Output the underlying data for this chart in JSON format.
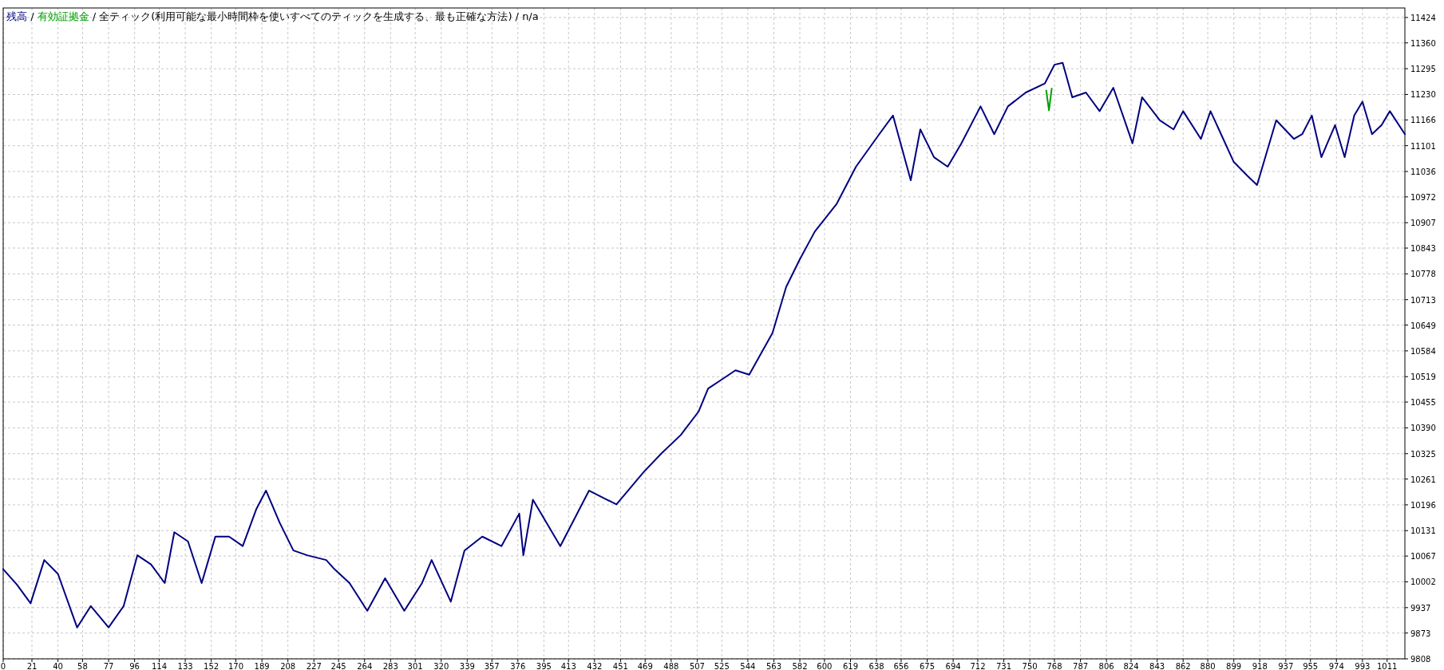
{
  "chart_data": {
    "type": "line",
    "title": "全ティック(利用可能な最小時間枠を使いすべてのティックを生成する、最も正確な方法)",
    "subtitle": "n/a",
    "annotations": [
      "/",
      "/",
      "/"
    ],
    "legend": "top left",
    "grid": true,
    "marker": "none",
    "line_style": "solid",
    "xlim": [
      0,
      1024
    ],
    "ylim": [
      9808,
      11448
    ],
    "xticks": [
      0,
      21,
      40,
      58,
      77,
      96,
      114,
      133,
      152,
      170,
      189,
      208,
      227,
      245,
      264,
      283,
      301,
      320,
      339,
      357,
      376,
      395,
      413,
      432,
      451,
      469,
      488,
      507,
      525,
      544,
      563,
      582,
      600,
      619,
      638,
      656,
      675,
      694,
      712,
      731,
      750,
      768,
      787,
      806,
      824,
      843,
      862,
      880,
      899,
      918,
      937,
      955,
      974,
      993,
      1011
    ],
    "yticks": [
      9808,
      9873,
      9937,
      10002,
      10067,
      10131,
      10196,
      10261,
      10325,
      10390,
      10455,
      10519,
      10584,
      10649,
      10713,
      10778,
      10843,
      10907,
      10972,
      11036,
      11101,
      11166,
      11230,
      11295,
      11360,
      11424
    ],
    "series": [
      {
        "name": "残高",
        "color": "#000080",
        "x": [
          0,
          10,
          20,
          30,
          40,
          54,
          64,
          77,
          88,
          98,
          108,
          118,
          125,
          135,
          145,
          155,
          165,
          175,
          185,
          192,
          202,
          212,
          222,
          236,
          242,
          253,
          266,
          279,
          293,
          306,
          313,
          327,
          337,
          350,
          364,
          377,
          380,
          387,
          407,
          428,
          448,
          468,
          481,
          495,
          508,
          515,
          525,
          535,
          545,
          562,
          572,
          582,
          593,
          609,
          623,
          640,
          650,
          663,
          670,
          680,
          690,
          700,
          714,
          724,
          734,
          747,
          761,
          768,
          774,
          781,
          791,
          801,
          811,
          825,
          832,
          845,
          855,
          862,
          875,
          882,
          899,
          909,
          916,
          930,
          943,
          949,
          956,
          963,
          973,
          980,
          987,
          993,
          1000,
          1007,
          1013,
          1024
        ],
        "values": [
          10034,
          9995,
          9948,
          10057,
          10022,
          9887,
          9941,
          9887,
          9941,
          10069,
          10046,
          9999,
          10127,
          10104,
          9999,
          10116,
          10116,
          10092,
          10186,
          10232,
          10151,
          10081,
          10069,
          10057,
          10034,
          9999,
          9929,
          10011,
          9929,
          9999,
          10057,
          9952,
          10081,
          10116,
          10092,
          10174,
          10069,
          10209,
          10092,
          10232,
          10197,
          10279,
          10326,
          10372,
          10431,
          10489,
          10512,
          10535,
          10524,
          10629,
          10745,
          10815,
          10885,
          10955,
          11048,
          11130,
          11177,
          11014,
          11142,
          11072,
          11048,
          11107,
          11200,
          11130,
          11200,
          11235,
          11258,
          11305,
          11310,
          11223,
          11235,
          11188,
          11247,
          11107,
          11223,
          11165,
          11142,
          11188,
          11118,
          11188,
          11060,
          11025,
          11002,
          11165,
          11118,
          11130,
          11177,
          11072,
          11153,
          11072,
          11177,
          11212,
          11130,
          11153,
          11188,
          11130
        ]
      },
      {
        "name": "有効証拠金",
        "color": "#00a000",
        "x": [
          762,
          764,
          766
        ],
        "values": [
          11240,
          11190,
          11245
        ]
      }
    ]
  }
}
